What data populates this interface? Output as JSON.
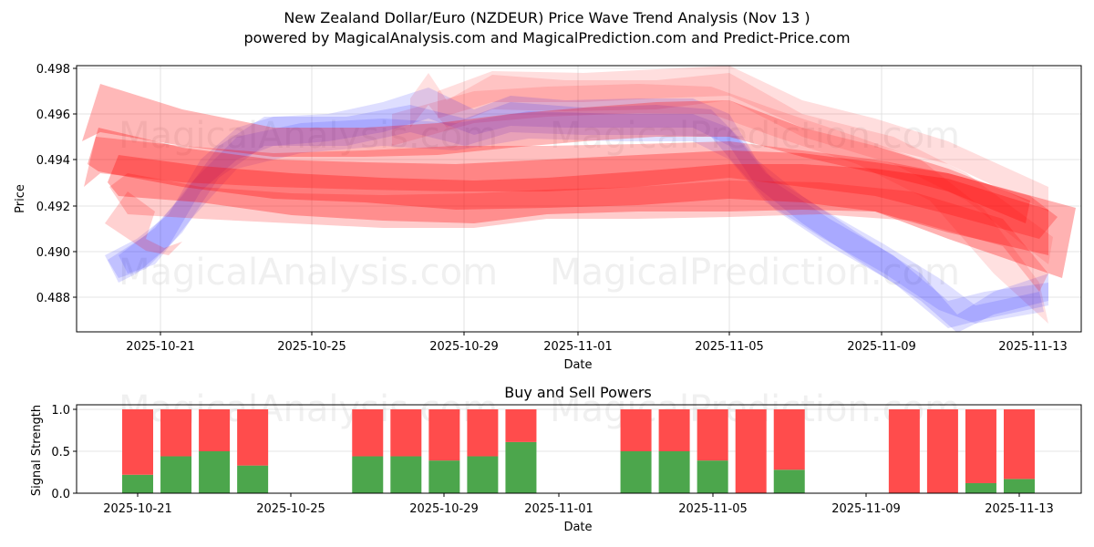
{
  "header": {
    "title": "New Zealand Dollar/Euro (NZDEUR) Price Wave Trend Analysis (Nov 13 )",
    "subtitle": "powered by MagicalAnalysis.com and MagicalPrediction.com and Predict-Price.com"
  },
  "watermarks": [
    "MagicalAnalysis.com",
    "MagicalPrediction.com"
  ],
  "colors": {
    "sell_band": "#ff0000",
    "buy_band": "#0000ff",
    "buy_bar": "#4ca64c",
    "sell_bar": "#ff4c4c",
    "grid": "#d9d9d9"
  },
  "chart_data": [
    {
      "type": "area",
      "title": "New Zealand Dollar/Euro (NZDEUR) Price Wave Trend Analysis (Nov 13 )",
      "xlabel": "Date",
      "ylabel": "Price",
      "ylim": [
        0.4866,
        0.4981
      ],
      "yticks": [
        "0.488",
        "0.490",
        "0.492",
        "0.494",
        "0.496",
        "0.498"
      ],
      "xticks": [
        "2025-10-21",
        "2025-10-25",
        "2025-10-29",
        "2025-11-01",
        "2025-11-05",
        "2025-11-09",
        "2025-11-13"
      ],
      "grid": true,
      "series": [
        {
          "name": "Red wave band (upper)",
          "color": "red",
          "x": [
            "2025-10-19",
            "2025-10-22",
            "2025-10-25",
            "2025-10-28",
            "2025-10-31",
            "2025-11-03",
            "2025-11-05",
            "2025-11-08",
            "2025-11-11",
            "2025-11-14"
          ],
          "values": [
            0.4955,
            0.495,
            0.4945,
            0.4942,
            0.4945,
            0.4948,
            0.4955,
            0.494,
            0.493,
            0.4905
          ]
        },
        {
          "name": "Red wave band (center)",
          "color": "red",
          "x": [
            "2025-10-19",
            "2025-10-22",
            "2025-10-25",
            "2025-10-28",
            "2025-10-31",
            "2025-11-03",
            "2025-11-05",
            "2025-11-08",
            "2025-11-11",
            "2025-11-14"
          ],
          "values": [
            0.494,
            0.4932,
            0.4928,
            0.4925,
            0.4925,
            0.493,
            0.4935,
            0.4928,
            0.4918,
            0.49
          ]
        },
        {
          "name": "Red wave band (faint upper)",
          "color": "red",
          "x": [
            "2025-10-29",
            "2025-11-01",
            "2025-11-05",
            "2025-11-09",
            "2025-11-13"
          ],
          "values": [
            0.496,
            0.497,
            0.4975,
            0.4955,
            0.492
          ]
        },
        {
          "name": "Blue wave band",
          "color": "blue",
          "x": [
            "2025-10-19",
            "2025-10-21",
            "2025-10-23",
            "2025-10-25",
            "2025-10-28",
            "2025-10-31",
            "2025-11-03",
            "2025-11-05",
            "2025-11-07",
            "2025-11-09",
            "2025-11-11",
            "2025-11-13"
          ],
          "values": [
            0.4892,
            0.4912,
            0.4948,
            0.4952,
            0.4958,
            0.4962,
            0.4962,
            0.495,
            0.4915,
            0.4895,
            0.4872,
            0.4882
          ]
        }
      ]
    },
    {
      "type": "bar",
      "title": "Buy and Sell Powers",
      "xlabel": "Date",
      "ylabel": "Signal Strength",
      "ylim": [
        0,
        1.05
      ],
      "yticks": [
        "0.0",
        "0.5",
        "1.0"
      ],
      "xticks": [
        "2025-10-21",
        "2025-10-25",
        "2025-10-29",
        "2025-11-01",
        "2025-11-05",
        "2025-11-09",
        "2025-11-13"
      ],
      "stacked": true,
      "categories": [
        "2025-10-21",
        "2025-10-22",
        "2025-10-23",
        "2025-10-24",
        "2025-10-27",
        "2025-10-28",
        "2025-10-29",
        "2025-10-30",
        "2025-10-31",
        "2025-11-03",
        "2025-11-04",
        "2025-11-05",
        "2025-11-06",
        "2025-11-07",
        "2025-11-10",
        "2025-11-11",
        "2025-11-12",
        "2025-11-13"
      ],
      "series": [
        {
          "name": "Buy",
          "color": "#4ca64c",
          "values": [
            0.22,
            0.44,
            0.5,
            0.33,
            0.44,
            0.44,
            0.39,
            0.44,
            0.61,
            0.5,
            0.5,
            0.39,
            0.0,
            0.28,
            0.0,
            0.0,
            0.12,
            0.17
          ]
        },
        {
          "name": "Sell",
          "color": "#ff4c4c",
          "values": [
            0.78,
            0.56,
            0.5,
            0.67,
            0.56,
            0.56,
            0.61,
            0.56,
            0.39,
            0.5,
            0.5,
            0.61,
            1.0,
            0.72,
            1.0,
            1.0,
            0.88,
            0.83
          ]
        }
      ]
    }
  ]
}
